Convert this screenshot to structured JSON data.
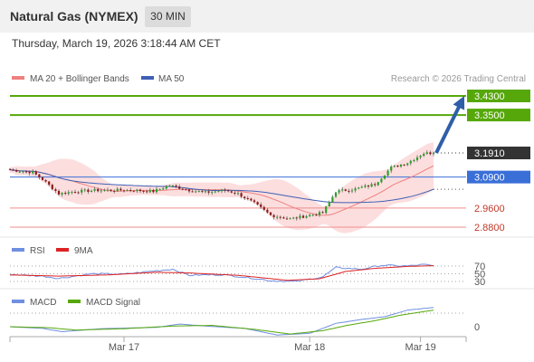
{
  "header": {
    "title": "Natural Gas (NYMEX)",
    "timeframe": "30 MIN",
    "datetime": "Thursday, March 19, 2026 3:18:44 AM CET"
  },
  "colors": {
    "candle_up": "#2ca02c",
    "candle_down": "#8b1a1a",
    "wick": "#555555",
    "ma20": "#ef8080",
    "bollinger_fill": "#fbd3d3",
    "ma50": "#3f5fb5",
    "resistance": "#56a80a",
    "pivot": "#3a6fd8",
    "support": "#ef8d8d",
    "current": "#333333",
    "arrow": "#2f5ea9",
    "rsi": "#6f8fe0",
    "rsi_ma": "#dd2222",
    "macd": "#6f8fe0",
    "macd_signal": "#56a80a"
  },
  "chart_data": [
    {
      "type": "candlestick",
      "title": "Natural Gas (NYMEX)",
      "timeframe": "30 MIN",
      "legend": [
        {
          "name": "MA 20 + Bollinger Bands",
          "color": "#ef8080"
        },
        {
          "name": "MA 50",
          "color": "#3f5fb5"
        }
      ],
      "watermark": "Research © 2026 Trading Central",
      "x_ticks": [
        "Mar 17",
        "Mar 18",
        "Mar 19"
      ],
      "ylim": [
        2.86,
        3.45
      ],
      "levels": [
        {
          "value": 3.43,
          "label": "3.4300",
          "kind": "resistance"
        },
        {
          "value": 3.35,
          "label": "3.3500",
          "kind": "resistance"
        },
        {
          "value": 3.191,
          "label": "3.1910",
          "kind": "current"
        },
        {
          "value": 3.09,
          "label": "3.0900",
          "kind": "pivot"
        },
        {
          "value": 2.96,
          "label": "2.9600",
          "kind": "support"
        },
        {
          "value": 2.88,
          "label": "2.8800",
          "kind": "support"
        }
      ],
      "anchors": [
        {
          "i": 0,
          "p": 3.12
        },
        {
          "i": 7,
          "p": 3.11
        },
        {
          "i": 10,
          "p": 3.08
        },
        {
          "i": 15,
          "p": 3.02
        },
        {
          "i": 20,
          "p": 3.03
        },
        {
          "i": 28,
          "p": 3.035
        },
        {
          "i": 38,
          "p": 3.035
        },
        {
          "i": 44,
          "p": 3.03
        },
        {
          "i": 49,
          "p": 3.055
        },
        {
          "i": 52,
          "p": 3.045
        },
        {
          "i": 55,
          "p": 3.035
        },
        {
          "i": 60,
          "p": 3.025
        },
        {
          "i": 66,
          "p": 3.035
        },
        {
          "i": 70,
          "p": 3.02
        },
        {
          "i": 75,
          "p": 2.98
        },
        {
          "i": 80,
          "p": 2.93
        },
        {
          "i": 86,
          "p": 2.915
        },
        {
          "i": 92,
          "p": 2.93
        },
        {
          "i": 96,
          "p": 2.94
        },
        {
          "i": 100,
          "p": 3.03
        },
        {
          "i": 106,
          "p": 3.04
        },
        {
          "i": 112,
          "p": 3.06
        },
        {
          "i": 117,
          "p": 3.13
        },
        {
          "i": 122,
          "p": 3.15
        },
        {
          "i": 127,
          "p": 3.19
        },
        {
          "i": 130,
          "p": 3.191
        }
      ],
      "candle_count": 131,
      "ma20_final": 3.14,
      "ma50_final": 3.02,
      "forecast_arrow": {
        "from": 3.191,
        "to": 3.43
      }
    },
    {
      "type": "line",
      "name": "RSI",
      "legend": [
        {
          "name": "RSI",
          "color": "#6f8fe0"
        },
        {
          "name": "9MA",
          "color": "#dd2222"
        }
      ],
      "ylim": [
        20,
        80
      ],
      "y_ticks": [
        70,
        50,
        30
      ],
      "rsi_anchors": [
        {
          "i": 0,
          "v": 48
        },
        {
          "i": 10,
          "v": 44
        },
        {
          "i": 15,
          "v": 38
        },
        {
          "i": 25,
          "v": 50
        },
        {
          "i": 35,
          "v": 49
        },
        {
          "i": 45,
          "v": 58
        },
        {
          "i": 50,
          "v": 62
        },
        {
          "i": 55,
          "v": 46
        },
        {
          "i": 65,
          "v": 48
        },
        {
          "i": 75,
          "v": 38
        },
        {
          "i": 80,
          "v": 32
        },
        {
          "i": 88,
          "v": 30
        },
        {
          "i": 96,
          "v": 42
        },
        {
          "i": 100,
          "v": 66
        },
        {
          "i": 108,
          "v": 62
        },
        {
          "i": 114,
          "v": 72
        },
        {
          "i": 122,
          "v": 70
        },
        {
          "i": 127,
          "v": 74
        },
        {
          "i": 130,
          "v": 70
        }
      ],
      "ma9_anchors": [
        {
          "i": 0,
          "v": 47
        },
        {
          "i": 15,
          "v": 44
        },
        {
          "i": 30,
          "v": 47
        },
        {
          "i": 45,
          "v": 54
        },
        {
          "i": 55,
          "v": 52
        },
        {
          "i": 70,
          "v": 46
        },
        {
          "i": 85,
          "v": 33
        },
        {
          "i": 95,
          "v": 37
        },
        {
          "i": 103,
          "v": 56
        },
        {
          "i": 112,
          "v": 64
        },
        {
          "i": 122,
          "v": 69
        },
        {
          "i": 130,
          "v": 71
        }
      ]
    },
    {
      "type": "line",
      "name": "MACD",
      "legend": [
        {
          "name": "MACD",
          "color": "#6f8fe0"
        },
        {
          "name": "MACD Signal",
          "color": "#56a80a"
        }
      ],
      "ylim": [
        -0.06,
        0.08
      ],
      "y_ticks": [
        0
      ],
      "macd_anchors": [
        {
          "i": 0,
          "v": 0.0
        },
        {
          "i": 10,
          "v": -0.005
        },
        {
          "i": 16,
          "v": -0.015
        },
        {
          "i": 28,
          "v": -0.006
        },
        {
          "i": 45,
          "v": -0.002
        },
        {
          "i": 52,
          "v": 0.008
        },
        {
          "i": 60,
          "v": 0.002
        },
        {
          "i": 72,
          "v": -0.005
        },
        {
          "i": 82,
          "v": -0.025
        },
        {
          "i": 92,
          "v": -0.02
        },
        {
          "i": 100,
          "v": 0.01
        },
        {
          "i": 108,
          "v": 0.022
        },
        {
          "i": 115,
          "v": 0.03
        },
        {
          "i": 122,
          "v": 0.05
        },
        {
          "i": 130,
          "v": 0.058
        }
      ],
      "signal_anchors": [
        {
          "i": 0,
          "v": 0.0
        },
        {
          "i": 12,
          "v": -0.003
        },
        {
          "i": 20,
          "v": -0.01
        },
        {
          "i": 35,
          "v": -0.006
        },
        {
          "i": 50,
          "v": 0.002
        },
        {
          "i": 62,
          "v": 0.004
        },
        {
          "i": 75,
          "v": -0.008
        },
        {
          "i": 86,
          "v": -0.022
        },
        {
          "i": 96,
          "v": -0.012
        },
        {
          "i": 104,
          "v": 0.005
        },
        {
          "i": 112,
          "v": 0.018
        },
        {
          "i": 120,
          "v": 0.035
        },
        {
          "i": 130,
          "v": 0.05
        }
      ]
    }
  ]
}
